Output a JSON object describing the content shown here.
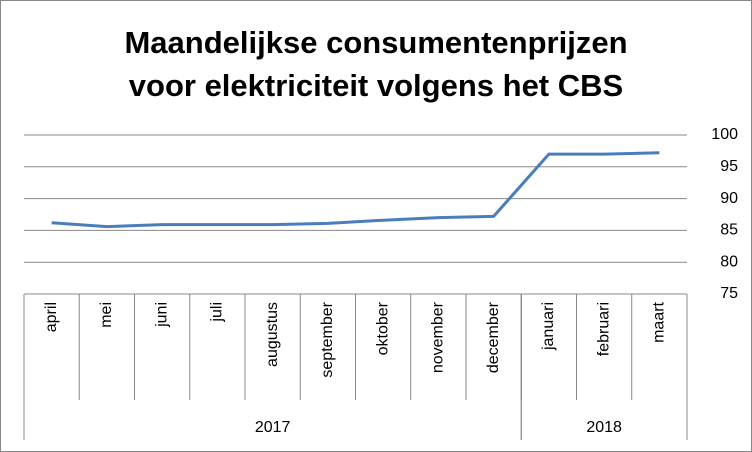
{
  "chart_data": {
    "type": "line",
    "title": [
      "Maandelijkse consumentenprijzen",
      "voor elektriciteit volgens het CBS"
    ],
    "categories": [
      "april",
      "mei",
      "juni",
      "juli",
      "augustus",
      "september",
      "oktober",
      "november",
      "december",
      "januari",
      "februari",
      "maart"
    ],
    "groups": [
      {
        "name": "2017",
        "count": 9
      },
      {
        "name": "2018",
        "count": 3
      }
    ],
    "values": [
      86.2,
      85.6,
      85.9,
      85.9,
      85.9,
      86.1,
      86.6,
      87.0,
      87.2,
      97.0,
      97.0,
      97.2
    ],
    "color": "#4a7ebb",
    "ylim": [
      75,
      100
    ],
    "yticks": [
      75,
      80,
      85,
      90,
      95,
      100
    ],
    "yaxis_side": "right",
    "grid": true
  }
}
